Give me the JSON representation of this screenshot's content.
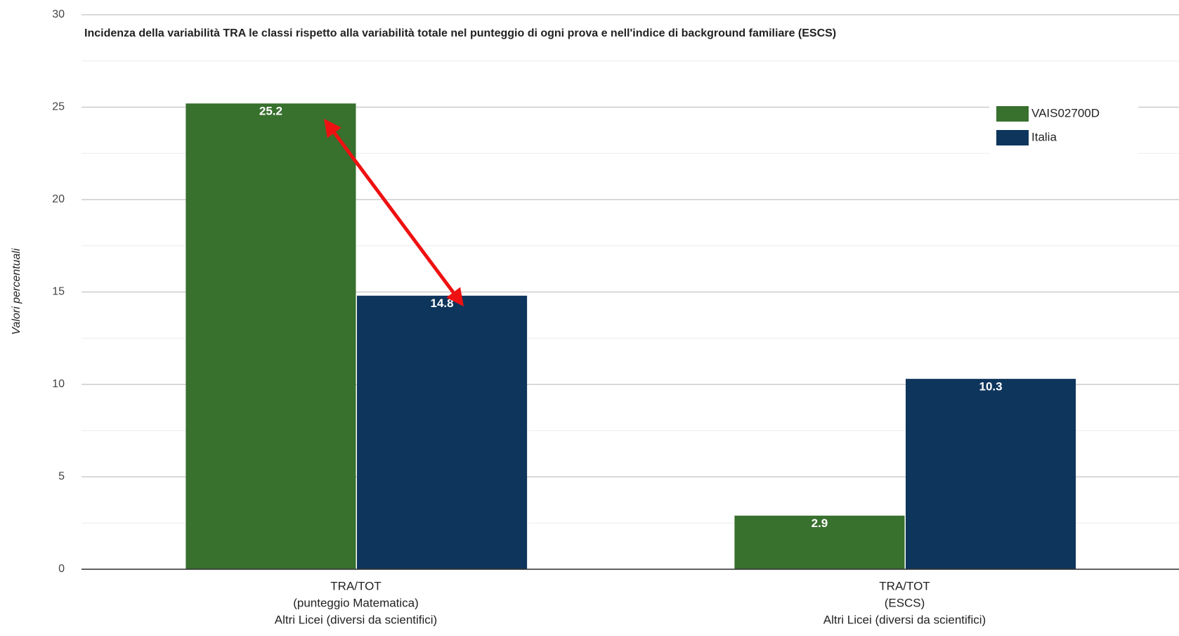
{
  "chart_data": {
    "type": "bar",
    "title": "Incidenza della variabilità TRA le classi rispetto alla variabilità totale nel punteggio di ogni prova e nell'indice di background familiare (ESCS)",
    "y_label": "Valori percentuali",
    "categories": [
      [
        "TRA/TOT",
        "(punteggio Matematica)",
        "Altri Licei (diversi da scientifici)"
      ],
      [
        "TRA/TOT",
        "(ESCS)",
        "Altri Licei (diversi da scientifici)"
      ]
    ],
    "series": [
      {
        "name": "VAIS02700D",
        "color": "#38702e",
        "values": [
          25.2,
          2.9
        ]
      },
      {
        "name": "Italia",
        "color": "#0e355c",
        "values": [
          14.8,
          10.3
        ]
      }
    ],
    "ylim": [
      0,
      30
    ],
    "yticks": [
      0,
      5,
      10,
      15,
      20,
      25,
      30
    ],
    "grid": true,
    "legend": "top-right"
  }
}
